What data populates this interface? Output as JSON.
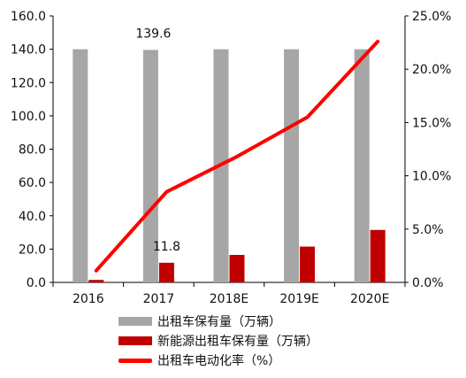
{
  "chart_data": {
    "type": "bar",
    "categories": [
      "2016",
      "2017",
      "2018E",
      "2019E",
      "2020E"
    ],
    "series": [
      {
        "name": "出租车保有量（万辆）",
        "type": "bar",
        "axis": "left",
        "color": "#a6a6a6",
        "values": [
          140.0,
          139.6,
          140.0,
          140.0,
          140.0
        ]
      },
      {
        "name": "新能源出租车保有量（万辆）",
        "type": "bar",
        "axis": "left",
        "color": "#c00000",
        "values": [
          1.5,
          11.8,
          16.5,
          21.5,
          31.5
        ]
      },
      {
        "name": "出租车电动化率（%）",
        "type": "line",
        "axis": "right",
        "color": "#ff0000",
        "values": [
          1.1,
          8.5,
          11.8,
          15.5,
          22.6
        ]
      }
    ],
    "y_left": {
      "min": 0,
      "max": 160,
      "step": 20,
      "tick_labels": [
        "0.0",
        "20.0",
        "40.0",
        "60.0",
        "80.0",
        "100.0",
        "120.0",
        "140.0",
        "160.0"
      ]
    },
    "y_right": {
      "min": 0,
      "max": 25,
      "step": 5,
      "tick_labels": [
        "0.0%",
        "5.0%",
        "10.0%",
        "15.0%",
        "20.0%",
        "25.0%"
      ]
    },
    "data_labels": [
      {
        "series": 0,
        "index": 1,
        "text": "139.6"
      },
      {
        "series": 1,
        "index": 1,
        "text": "11.8"
      }
    ],
    "legend_position": "bottom",
    "grid": false
  }
}
